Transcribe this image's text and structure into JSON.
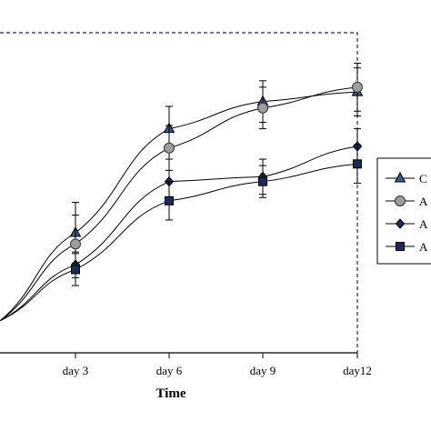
{
  "chart_data": {
    "type": "line",
    "title": "",
    "xlabel": "Time",
    "ylabel": "",
    "categories": [
      "",
      "day 3",
      "day 6",
      "day 9",
      "day12"
    ],
    "tick_labels": [
      "day 3",
      "day 6",
      "day 9",
      "day12"
    ],
    "ylim": [
      0,
      10
    ],
    "grid": false,
    "legend_position": "right",
    "series": [
      {
        "name": "C",
        "marker": "triangle",
        "fill": "#3d5a8c",
        "values": [
          1.0,
          3.75,
          7.0,
          7.85,
          8.15
        ],
        "errors": [
          0,
          0.95,
          0.7,
          0.65,
          0.75
        ]
      },
      {
        "name": "A",
        "marker": "circle",
        "fill": "#9e9e9e",
        "values": [
          1.0,
          3.4,
          6.4,
          7.65,
          8.3
        ],
        "errors": [
          0,
          0.9,
          0.7,
          0.65,
          0.75
        ]
      },
      {
        "name": "A",
        "marker": "diamond",
        "fill": "#1a2a5a",
        "values": [
          1.0,
          2.75,
          5.35,
          5.5,
          6.45
        ],
        "errors": [
          0,
          0.4,
          0.7,
          0.55,
          0.55
        ]
      },
      {
        "name": "A",
        "marker": "square",
        "fill": "#1a2a5a",
        "values": [
          1.0,
          2.6,
          4.75,
          5.35,
          5.9
        ],
        "errors": [
          0,
          0.5,
          0.6,
          0.5,
          0.6
        ]
      }
    ]
  }
}
